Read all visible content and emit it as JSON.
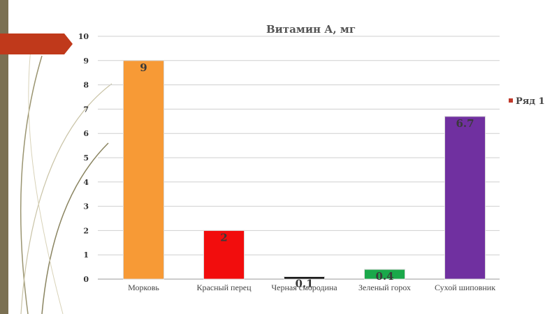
{
  "chart_data": {
    "type": "bar",
    "title": "Витамин А, мг",
    "categories": [
      "Морковь",
      "Красный перец",
      "Черная смородина",
      "Зеленый горох",
      "Сухой шиповник"
    ],
    "series": [
      {
        "name": "Ряд 1",
        "values": [
          9,
          2,
          0.1,
          0.4,
          6.7
        ],
        "data_labels": [
          "9",
          "2",
          "0.1",
          "0.4",
          "6.7"
        ],
        "colors": [
          "#f79a36",
          "#f20d0d",
          "#111111",
          "#1aa84a",
          "#7030a0"
        ]
      }
    ],
    "ylim": [
      0,
      10
    ],
    "yticks": [
      "0",
      "1",
      "2",
      "3",
      "4",
      "5",
      "6",
      "7",
      "8",
      "9",
      "10"
    ],
    "xlabel": "",
    "ylabel": "",
    "grid": true,
    "legend_position": "right",
    "legend_color": "#c0392b"
  }
}
